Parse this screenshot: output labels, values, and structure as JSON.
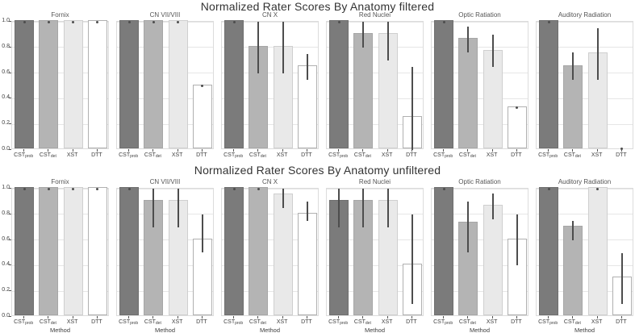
{
  "figure": {
    "colors": {
      "background": "#ffffff",
      "panel_border": "#dcdcdc",
      "gridline": "#e6e6e6",
      "error_bar": "#4d4d4d",
      "text": "#404040",
      "title_text": "#333333",
      "bar_fills": [
        "#7b7b7b",
        "#b4b4b4",
        "#e9e9e9",
        "#ffffff"
      ],
      "bar_borders": [
        "#6f6f6f",
        "#a6a6a6",
        "#cfcfcf",
        "#b0b0b0"
      ]
    }
  },
  "chart_data": [
    {
      "type": "bar",
      "title": "Normalized Rater Scores By Anatomy filtered",
      "ylabel": "Norm_score",
      "xlabel": "",
      "ylim": [
        0,
        1
      ],
      "yticks": [
        0.0,
        0.2,
        0.4,
        0.6,
        0.8,
        1.0
      ],
      "legend": "none",
      "grid": "horizontal-major",
      "categories": [
        {
          "base": "CST",
          "sub": "prob"
        },
        {
          "base": "CST",
          "sub": "det"
        },
        {
          "base": "XST",
          "sub": ""
        },
        {
          "base": "DTT",
          "sub": ""
        }
      ],
      "facets": [
        {
          "name": "Fornix",
          "values": [
            1.0,
            1.0,
            1.0,
            1.0
          ],
          "ci": [
            [
              1,
              1
            ],
            [
              1,
              1
            ],
            [
              1,
              1
            ],
            [
              1,
              1
            ]
          ]
        },
        {
          "name": "CN VII/VIII",
          "values": [
            1.0,
            1.0,
            1.0,
            0.5
          ],
          "ci": [
            [
              1,
              1
            ],
            [
              1,
              1
            ],
            [
              1,
              1
            ],
            [
              0.5,
              0.5
            ]
          ]
        },
        {
          "name": "CN X",
          "values": [
            1.0,
            0.8,
            0.8,
            0.65
          ],
          "ci": [
            [
              1,
              1
            ],
            [
              0.6,
              1.0
            ],
            [
              0.6,
              1.0
            ],
            [
              0.55,
              0.75
            ]
          ]
        },
        {
          "name": "Red Nuclei",
          "values": [
            1.0,
            0.9,
            0.9,
            0.25
          ],
          "ci": [
            [
              1,
              1
            ],
            [
              0.8,
              1.0
            ],
            [
              0.7,
              1.0
            ],
            [
              0.0,
              0.65
            ]
          ]
        },
        {
          "name": "Optic Ratiation",
          "values": [
            1.0,
            0.86,
            0.77,
            0.33
          ],
          "ci": [
            [
              1,
              1
            ],
            [
              0.76,
              0.96
            ],
            [
              0.65,
              0.9
            ],
            [
              0.33,
              0.33
            ]
          ]
        },
        {
          "name": "Auditory Radiation",
          "values": [
            1.0,
            0.65,
            0.75,
            0.0
          ],
          "ci": [
            [
              1,
              1
            ],
            [
              0.55,
              0.76
            ],
            [
              0.55,
              0.95
            ],
            [
              0.0,
              0.0
            ]
          ]
        }
      ]
    },
    {
      "type": "bar",
      "title": "Normalized Rater Scores By Anatomy unfiltered",
      "ylabel": "Norm_score",
      "xlabel": "Method",
      "ylim": [
        0,
        1
      ],
      "yticks": [
        0.0,
        0.2,
        0.4,
        0.6,
        0.8,
        1.0
      ],
      "legend": "none",
      "grid": "horizontal-major",
      "categories": [
        {
          "base": "CST",
          "sub": "prob"
        },
        {
          "base": "CST",
          "sub": "det"
        },
        {
          "base": "XST",
          "sub": ""
        },
        {
          "base": "DTT",
          "sub": ""
        }
      ],
      "facets": [
        {
          "name": "Fornix",
          "values": [
            1.0,
            1.0,
            1.0,
            1.0
          ],
          "ci": [
            [
              1,
              1
            ],
            [
              1,
              1
            ],
            [
              1,
              1
            ],
            [
              1,
              1
            ]
          ]
        },
        {
          "name": "CN VII/VIII",
          "values": [
            1.0,
            0.9,
            0.9,
            0.6
          ],
          "ci": [
            [
              1,
              1
            ],
            [
              0.7,
              1.0
            ],
            [
              0.7,
              1.0
            ],
            [
              0.5,
              0.8
            ]
          ]
        },
        {
          "name": "CN X",
          "values": [
            1.0,
            1.0,
            0.95,
            0.8
          ],
          "ci": [
            [
              1,
              1
            ],
            [
              1,
              1
            ],
            [
              0.85,
              1.0
            ],
            [
              0.75,
              0.9
            ]
          ]
        },
        {
          "name": "Red Nuclei",
          "values": [
            0.9,
            0.9,
            0.9,
            0.4
          ],
          "ci": [
            [
              0.7,
              1.0
            ],
            [
              0.7,
              1.0
            ],
            [
              0.7,
              1.0
            ],
            [
              0.1,
              0.8
            ]
          ]
        },
        {
          "name": "Optic Ratiation",
          "values": [
            1.0,
            0.73,
            0.86,
            0.6
          ],
          "ci": [
            [
              1,
              1
            ],
            [
              0.5,
              0.9
            ],
            [
              0.76,
              0.96
            ],
            [
              0.4,
              0.8
            ]
          ]
        },
        {
          "name": "Auditory Radiation",
          "values": [
            1.0,
            0.7,
            1.0,
            0.3
          ],
          "ci": [
            [
              1,
              1
            ],
            [
              0.6,
              0.75
            ],
            [
              1,
              1
            ],
            [
              0.1,
              0.5
            ]
          ]
        }
      ]
    }
  ]
}
